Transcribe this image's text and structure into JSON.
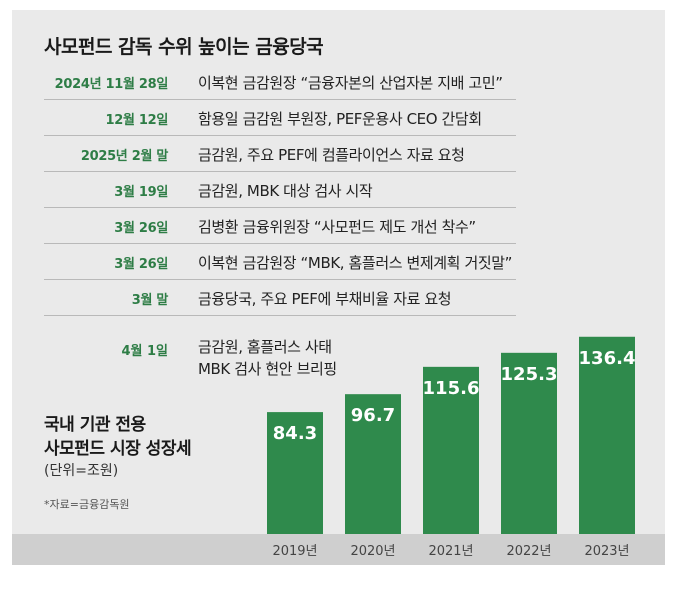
{
  "title": "사모펀드 감독 수위 높이는 금융당국",
  "timeline": [
    {
      "date": "2024년 11월 28일",
      "event": "이복현 금감원장 “금융자본의 산업자본 지배 고민”"
    },
    {
      "date": "12월 12일",
      "event": "함용일 금감원 부원장, PEF운용사 CEO 간담회"
    },
    {
      "date": "2025년 2월 말",
      "event": "금감원, 주요 PEF에 컴플라이언스 자료 요청"
    },
    {
      "date": "3월 19일",
      "event": "금감원, MBK 대상 검사 시작"
    },
    {
      "date": "3월 26일",
      "event": "김병환 금융위원장 “사모펀드 제도 개선 착수”"
    },
    {
      "date": "3월 26일",
      "event": "이복현 금감원장 “MBK, 홈플러스 변제계획 거짓말”"
    },
    {
      "date": "3월 말",
      "event": "금융당국, 주요 PEF에 부채비율 자료 요청"
    }
  ],
  "last_item": {
    "date": "4월 1일",
    "event_line1": "금감원, 홈플러스 사태",
    "event_line2": "MBK 검사 현안 브리핑"
  },
  "chart_title_line1": "국내 기관 전용",
  "chart_title_line2": "사모펀드 시장 성장세",
  "chart_unit": "(단위=조원)",
  "source": "*자료=금융감독원",
  "colors": {
    "accent_green": "#2e7d46",
    "bar_green": "#2f8a4c",
    "background": "#eaeaea"
  },
  "chart_data": {
    "type": "bar",
    "categories": [
      "2019년",
      "2020년",
      "2021년",
      "2022년",
      "2023년"
    ],
    "values": [
      84.3,
      96.7,
      115.6,
      125.3,
      136.4
    ],
    "value_labels": [
      "84.3",
      "96.7",
      "115.6",
      "125.3",
      "136.4"
    ],
    "title": "국내 기관 전용 사모펀드 시장 성장세",
    "ylabel": "(단위=조원)",
    "grid": false,
    "legend": "none"
  }
}
